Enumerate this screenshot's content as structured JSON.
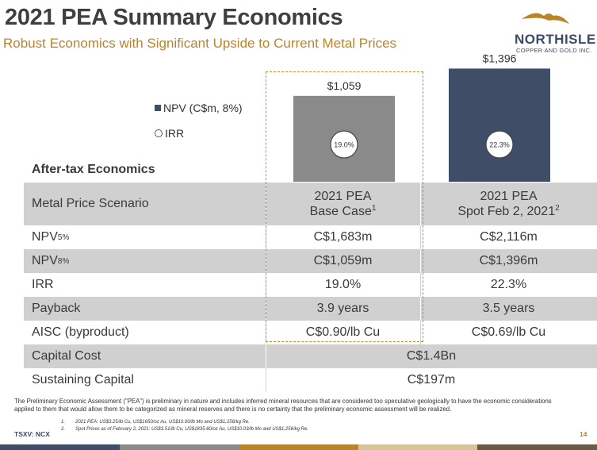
{
  "header": {
    "title": "2021 PEA Summary Economics",
    "subtitle": "Robust Economics with Significant Upside to Current Metal Prices"
  },
  "logo": {
    "name": "NORTHISLE",
    "sub": "COPPER AND GOLD INC.",
    "color": "#3b4b66",
    "accent": "#b8852a"
  },
  "legend": {
    "npv": "NPV (C$m, 8%)",
    "irr": "IRR"
  },
  "chart_data": {
    "type": "bar",
    "categories": [
      "2021 PEA Base Case",
      "2021 PEA Spot Feb 2, 2021"
    ],
    "series": [
      {
        "name": "NPV (C$m, 8%)",
        "values": [
          1059,
          1396
        ],
        "labels": [
          "$1,059",
          "$1,396"
        ]
      },
      {
        "name": "IRR",
        "values": [
          19.0,
          22.3
        ],
        "labels": [
          "19.0%",
          "22.3%"
        ]
      }
    ],
    "colors": [
      "#8a8a8a",
      "#3f4d66"
    ],
    "ylim": [
      0,
      1400
    ],
    "grid": false,
    "legend": "left"
  },
  "table": {
    "section_title": "After-tax Economics",
    "header": {
      "label": "Metal Price Scenario",
      "col1_line1": "2021 PEA",
      "col1_line2": "Base Case",
      "col1_sup": "1",
      "col2_line1": "2021 PEA",
      "col2_line2": "Spot Feb 2, 2021",
      "col2_sup": "2"
    },
    "rows": [
      {
        "label": "NPV",
        "sub": "5%",
        "base": "C$1,683m",
        "spot": "C$2,116m"
      },
      {
        "label": "NPV",
        "sub": "8%",
        "base": "C$1,059m",
        "spot": "C$1,396m"
      },
      {
        "label": "IRR",
        "base": "19.0%",
        "spot": "22.3%"
      },
      {
        "label": "Payback",
        "base": "3.9 years",
        "spot": "3.5 years"
      },
      {
        "label": "AISC (byproduct)",
        "base": "C$0.90/lb Cu",
        "spot": "C$0.69/lb Cu"
      }
    ],
    "span_rows": [
      {
        "label": "Capital Cost",
        "value": "C$1.4Bn"
      },
      {
        "label": "Sustaining Capital",
        "value": "C$197m"
      }
    ]
  },
  "footer": {
    "disclaimer": "The Preliminary Economic Assessment (\"PEA\") is preliminary in nature and includes inferred mineral resources that are considered too speculative geologically to have the economic considerations applied to them that would allow them to be categorized as mineral reserves and there is no certainty that the preliminary economic assessment will be realized.",
    "fn1_num": "1.",
    "fn1": "2021 PEA: US$3.25/lb Cu, US$1650/oz Au, US$10.00/lb Mo and US$1,256/kg Re.",
    "fn2_num": "2.",
    "fn2": "Spot Prices as of February 2, 2021: US$3.51/lb Cu, US$1835.60/oz Au, US$10.03/lb Mo and US$1,256/kg Re.",
    "ticker": "TSXV: NCX",
    "page": "14"
  },
  "bottom_bar_colors": [
    "#3f4d66",
    "#8a8a8a",
    "#b8852a",
    "#d9c49a",
    "#6b5a48"
  ]
}
